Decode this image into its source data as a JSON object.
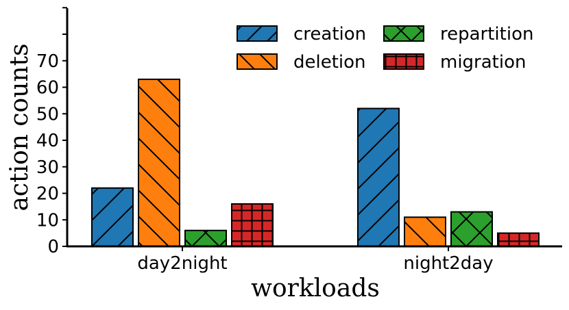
{
  "chart_data": {
    "type": "bar",
    "xlabel": "workloads",
    "ylabel": "action counts",
    "categories": [
      "day2night",
      "night2day"
    ],
    "series": [
      {
        "name": "creation",
        "values": [
          22,
          52
        ],
        "color": "#1f77b4",
        "hatch": "forward-diagonal"
      },
      {
        "name": "deletion",
        "values": [
          63,
          11
        ],
        "color": "#ff7f0e",
        "hatch": "back-diagonal"
      },
      {
        "name": "repartition",
        "values": [
          6,
          13
        ],
        "color": "#2ca02c",
        "hatch": "cross-diagonal"
      },
      {
        "name": "migration",
        "values": [
          16,
          5
        ],
        "color": "#d62728",
        "hatch": "grid"
      }
    ],
    "yticks": [
      0,
      10,
      20,
      30,
      40,
      50,
      60,
      70
    ],
    "ylim": [
      0,
      90
    ],
    "grid": false,
    "legend_position": "top-right"
  }
}
